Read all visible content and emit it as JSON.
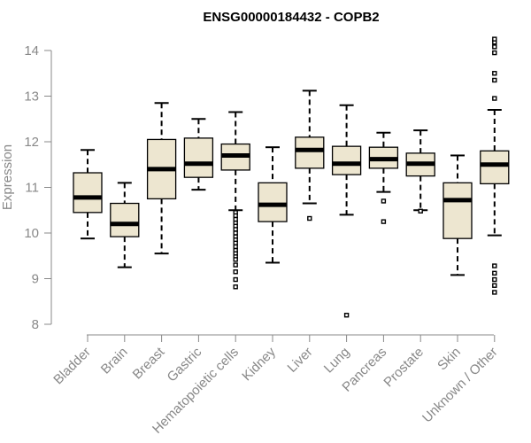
{
  "chart_data": {
    "type": "boxplot",
    "title": "ENSG00000184432 - COPB2",
    "xlabel": "",
    "ylabel": "Expression",
    "ylim": [
      8,
      14.2
    ],
    "yticks": [
      8,
      9,
      10,
      11,
      12,
      13,
      14
    ],
    "grid": false,
    "box_fill": "#ede6d0",
    "median_color": "#000000",
    "categories": [
      "Bladder",
      "Brain",
      "Breast",
      "Gastric",
      "Hematopoietic cells",
      "Kidney",
      "Liver",
      "Lung",
      "Pancreas",
      "Prostate",
      "Skin",
      "Unknown / Other"
    ],
    "boxes": [
      {
        "category": "Bladder",
        "whisker_low": 9.88,
        "q1": 10.45,
        "median": 10.78,
        "q3": 11.32,
        "whisker_high": 11.82,
        "outliers": []
      },
      {
        "category": "Brain",
        "whisker_low": 9.25,
        "q1": 9.92,
        "median": 10.2,
        "q3": 10.65,
        "whisker_high": 11.1,
        "outliers": []
      },
      {
        "category": "Breast",
        "whisker_low": 9.55,
        "q1": 10.75,
        "median": 11.4,
        "q3": 12.05,
        "whisker_high": 12.85,
        "outliers": []
      },
      {
        "category": "Gastric",
        "whisker_low": 10.95,
        "q1": 11.22,
        "median": 11.52,
        "q3": 12.08,
        "whisker_high": 12.5,
        "outliers": []
      },
      {
        "category": "Hematopoietic cells",
        "whisker_low": 10.5,
        "q1": 11.38,
        "median": 11.7,
        "q3": 11.95,
        "whisker_high": 12.65,
        "outliers": [
          10.45,
          10.38,
          10.3,
          10.22,
          10.15,
          10.08,
          10.0,
          9.92,
          9.85,
          9.78,
          9.7,
          9.62,
          9.55,
          9.48,
          9.42,
          9.3,
          9.15,
          8.98,
          8.82
        ]
      },
      {
        "category": "Kidney",
        "whisker_low": 9.35,
        "q1": 10.25,
        "median": 10.62,
        "q3": 11.1,
        "whisker_high": 11.88,
        "outliers": []
      },
      {
        "category": "Liver",
        "whisker_low": 10.65,
        "q1": 11.42,
        "median": 11.82,
        "q3": 12.1,
        "whisker_high": 13.12,
        "outliers": [
          10.32
        ]
      },
      {
        "category": "Lung",
        "whisker_low": 10.4,
        "q1": 11.28,
        "median": 11.52,
        "q3": 11.9,
        "whisker_high": 12.8,
        "outliers": [
          8.2
        ]
      },
      {
        "category": "Pancreas",
        "whisker_low": 10.9,
        "q1": 11.42,
        "median": 11.62,
        "q3": 11.88,
        "whisker_high": 12.2,
        "outliers": [
          10.7,
          10.25
        ]
      },
      {
        "category": "Prostate",
        "whisker_low": 10.5,
        "q1": 11.25,
        "median": 11.52,
        "q3": 11.75,
        "whisker_high": 12.25,
        "outliers": [
          10.48
        ]
      },
      {
        "category": "Skin",
        "whisker_low": 9.08,
        "q1": 9.88,
        "median": 10.72,
        "q3": 11.1,
        "whisker_high": 11.7,
        "outliers": []
      },
      {
        "category": "Unknown / Other",
        "whisker_low": 9.95,
        "q1": 11.08,
        "median": 11.5,
        "q3": 11.8,
        "whisker_high": 12.7,
        "outliers": [
          12.95,
          13.35,
          13.5,
          13.95,
          14.08,
          14.18,
          14.25,
          9.28,
          9.12,
          8.98,
          8.85,
          8.7
        ]
      }
    ]
  }
}
